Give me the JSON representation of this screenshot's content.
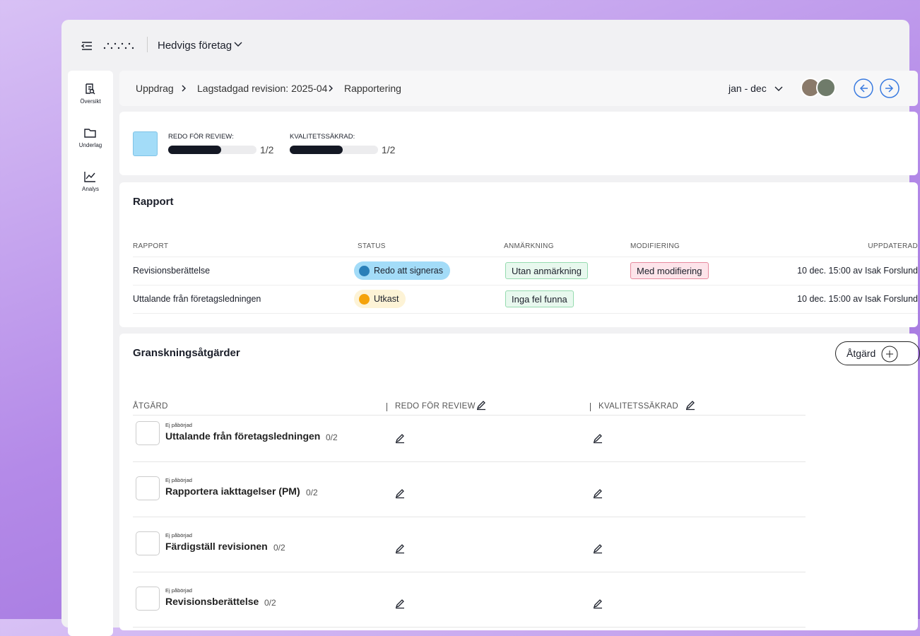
{
  "header": {
    "company": "Hedvigs företag"
  },
  "sidebar": [
    "Översikt",
    "Underlag",
    "Analys"
  ],
  "breadcrumb": [
    "Uppdrag",
    "Lagstadgad revision: 2025-04",
    "Rapportering"
  ],
  "period": "jan - dec",
  "progress": [
    {
      "label": "REDO FÖR REVIEW:",
      "value": "1/2"
    },
    {
      "label": "KVALITETSSÄKRAD:",
      "value": "1/2"
    }
  ],
  "report": {
    "title": "Rapport",
    "columns": [
      "RAPPORT",
      "STATUS",
      "ANMÄRKNING",
      "MODIFIERING",
      "UPPDATERAD"
    ],
    "rows": [
      {
        "name": "Revisionsberättelse",
        "status": "Redo att signeras",
        "remark": "Utan anmärkning",
        "modification": "Med modifiering",
        "updated": "10 dec. 15:00 av Isak Forslund"
      },
      {
        "name": "Uttalande från företagsledningen",
        "status": "Utkast",
        "remark": "Inga fel funna",
        "modification": null,
        "updated": "10 dec. 15:00 av Isak Forslund"
      }
    ]
  },
  "actions": {
    "title": "Granskningsåtgärder",
    "button": "Åtgärd",
    "columns": [
      "ÅTGÄRD",
      "REDO FÖR REVIEW",
      "KVALITETSSÄKRAD"
    ],
    "rows": [
      {
        "state": "Ej påbörjad",
        "name": "Uttalande från företagsledningen",
        "count": "0/2"
      },
      {
        "state": "Ej påbörjad",
        "name": "Rapportera iakttagelser (PM)",
        "count": "0/2"
      },
      {
        "state": "Ej påbörjad",
        "name": "Färdigställ revisionen",
        "count": "0/2"
      },
      {
        "state": "Ej påbörjad",
        "name": "Revisionsberättelse",
        "count": "0/2"
      }
    ]
  }
}
